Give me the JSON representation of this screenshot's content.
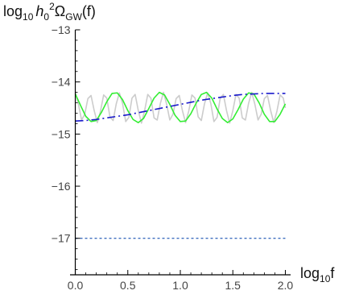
{
  "chart_data": {
    "type": "line",
    "ylabel": {
      "prefix": "log",
      "prefix_sub": "10",
      "h": "h",
      "h_sub": "0",
      "h_sup": "2",
      "omega": "Ω",
      "omega_sub": "GW",
      "suffix": "(f)"
    },
    "xlabel": {
      "prefix": "log",
      "prefix_sub": "10",
      "suffix": "f"
    },
    "xlim": [
      -0.05,
      2.05
    ],
    "ylim": [
      -17.7,
      -13.0
    ],
    "x_ticks": [
      0.0,
      0.5,
      1.0,
      1.5,
      2.0
    ],
    "x_tick_labels": [
      "0.0",
      "0.5",
      "1.0",
      "1.5",
      "2.0"
    ],
    "y_ticks": [
      -13,
      -14,
      -15,
      -16,
      -17
    ],
    "y_tick_labels": [
      "-13",
      "-14",
      "-15",
      "-16",
      "-17"
    ],
    "colors": {
      "gray": "#cccccc",
      "green": "#33ee33",
      "blue": "#1a1acc",
      "dotted": "#3f6fbf",
      "axis": "#000000"
    },
    "series": [
      {
        "style": "solid",
        "color_key": "gray",
        "x": [
          0.0,
          0.03,
          0.06,
          0.09,
          0.12,
          0.15,
          0.18,
          0.21,
          0.24,
          0.27,
          0.3,
          0.33,
          0.36,
          0.39,
          0.42,
          0.45,
          0.48,
          0.51,
          0.54,
          0.57,
          0.6,
          0.63,
          0.66,
          0.69,
          0.72,
          0.75,
          0.78,
          0.81,
          0.84,
          0.87,
          0.9,
          0.93,
          0.96,
          0.99,
          1.02,
          1.05,
          1.08,
          1.11,
          1.14,
          1.17,
          1.2,
          1.23,
          1.26,
          1.29,
          1.32,
          1.35,
          1.38,
          1.41,
          1.44,
          1.47,
          1.5,
          1.53,
          1.56,
          1.59,
          1.62,
          1.65,
          1.68,
          1.71,
          1.74,
          1.77,
          1.8,
          1.83,
          1.86,
          1.89,
          1.92,
          1.95,
          1.98,
          2.0
        ],
        "y": [
          -14.2,
          -14.43,
          -14.73,
          -14.62,
          -14.32,
          -14.26,
          -14.55,
          -14.78,
          -14.56,
          -14.25,
          -14.31,
          -14.67,
          -14.74,
          -14.42,
          -14.21,
          -14.41,
          -14.76,
          -14.68,
          -14.31,
          -14.24,
          -14.55,
          -14.79,
          -14.55,
          -14.24,
          -14.31,
          -14.69,
          -14.73,
          -14.41,
          -14.2,
          -14.43,
          -14.73,
          -14.62,
          -14.32,
          -14.26,
          -14.55,
          -14.78,
          -14.56,
          -14.25,
          -14.31,
          -14.67,
          -14.74,
          -14.42,
          -14.21,
          -14.41,
          -14.76,
          -14.68,
          -14.31,
          -14.24,
          -14.55,
          -14.79,
          -14.55,
          -14.24,
          -14.31,
          -14.69,
          -14.73,
          -14.41,
          -14.2,
          -14.43,
          -14.73,
          -14.62,
          -14.32,
          -14.26,
          -14.55,
          -14.78,
          -14.56,
          -14.25,
          -14.31,
          -14.5
        ]
      },
      {
        "style": "solid",
        "color_key": "green",
        "x": [
          0.0,
          0.05,
          0.1,
          0.15,
          0.2,
          0.25,
          0.3,
          0.35,
          0.4,
          0.45,
          0.5,
          0.55,
          0.6,
          0.65,
          0.7,
          0.75,
          0.8,
          0.85,
          0.9,
          0.95,
          1.0,
          1.05,
          1.1,
          1.15,
          1.2,
          1.25,
          1.3,
          1.35,
          1.4,
          1.45,
          1.5,
          1.55,
          1.6,
          1.65,
          1.7,
          1.75,
          1.8,
          1.85,
          1.9,
          1.95,
          2.0
        ],
        "y": [
          -14.23,
          -14.45,
          -14.66,
          -14.76,
          -14.74,
          -14.58,
          -14.38,
          -14.22,
          -14.21,
          -14.34,
          -14.55,
          -14.72,
          -14.78,
          -14.7,
          -14.51,
          -14.31,
          -14.2,
          -14.25,
          -14.43,
          -14.64,
          -14.76,
          -14.75,
          -14.61,
          -14.41,
          -14.24,
          -14.2,
          -14.31,
          -14.52,
          -14.7,
          -14.78,
          -14.71,
          -14.53,
          -14.33,
          -14.21,
          -14.23,
          -14.4,
          -14.62,
          -14.76,
          -14.76,
          -14.62,
          -14.42
        ]
      },
      {
        "style": "dashdot",
        "color_key": "blue",
        "x": [
          0.0,
          0.1,
          0.2,
          0.3,
          0.4,
          0.5,
          0.6,
          0.7,
          0.8,
          0.9,
          1.0,
          1.1,
          1.2,
          1.3,
          1.4,
          1.5,
          1.6,
          1.7,
          1.8,
          1.9,
          2.0
        ],
        "y": [
          -14.75,
          -14.74,
          -14.72,
          -14.69,
          -14.66,
          -14.63,
          -14.59,
          -14.55,
          -14.51,
          -14.47,
          -14.43,
          -14.39,
          -14.35,
          -14.32,
          -14.29,
          -14.26,
          -14.24,
          -14.23,
          -14.22,
          -14.22,
          -14.22
        ]
      },
      {
        "style": "dotted",
        "color_key": "dotted",
        "x": [
          0.0,
          2.0
        ],
        "y": [
          -17.0,
          -17.0
        ]
      }
    ],
    "grid": false,
    "legend": "none"
  }
}
